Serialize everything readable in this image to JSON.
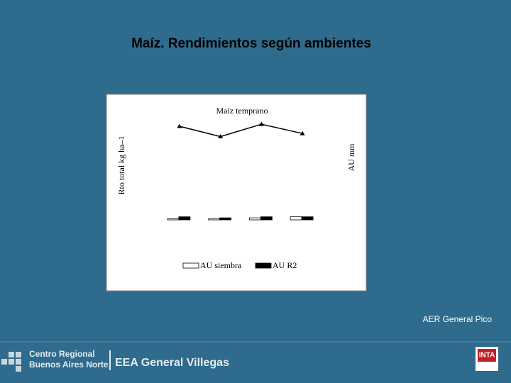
{
  "slide": {
    "title": "Maíz. Rendimientos según ambientes",
    "credit": "AER General Pico",
    "footer": {
      "region_line1": "Centro Regional",
      "region_line2": "Buenos Aires Norte",
      "station": "EEA General Villegas",
      "logo": "INTA"
    }
  },
  "chart_data": {
    "type": "bar-line",
    "title": "Maíz temprano",
    "y_label": "Rto total kg ha–1",
    "y2_label": "AU mm",
    "categories": [
      null,
      null,
      null,
      null
    ],
    "ylim": [
      0,
      100
    ],
    "y2lim": [
      0,
      100
    ],
    "series": [
      {
        "type": "line",
        "color": "#000000",
        "values": [
          91,
          81,
          93,
          84
        ]
      },
      {
        "type": "bar",
        "name": "AU siembra",
        "color": "#ffffff",
        "axis": "y2",
        "values": [
          1,
          1,
          2,
          3
        ]
      },
      {
        "type": "bar",
        "name": "AU R2",
        "color": "#000000",
        "axis": "y2",
        "values": [
          3,
          2,
          3,
          3
        ]
      }
    ]
  }
}
